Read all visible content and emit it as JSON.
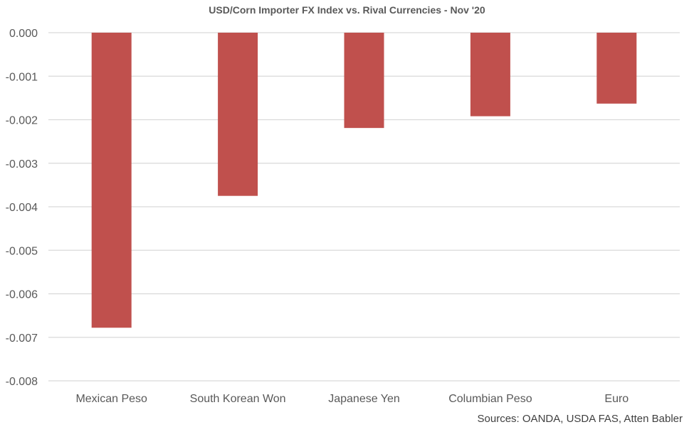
{
  "chart_data": {
    "type": "bar",
    "title": "USD/Corn Importer FX Index vs. Rival Currencies - Nov '20",
    "source": "Sources: OANDA, USDA FAS, Atten Babler",
    "categories": [
      "Mexican Peso",
      "South Korean Won",
      "Japanese Yen",
      "Columbian Peso",
      "Euro"
    ],
    "values": [
      -0.00678,
      -0.00375,
      -0.00219,
      -0.00192,
      -0.00163
    ],
    "ylim": [
      -0.008,
      0.0
    ],
    "yticks": [
      "0.000",
      "-0.001",
      "-0.002",
      "-0.003",
      "-0.004",
      "-0.005",
      "-0.006",
      "-0.007",
      "-0.008"
    ],
    "xlabel": "",
    "ylabel": "",
    "grid": true,
    "bar_color": "#c0504d",
    "grid_color": "#d9d9d9"
  }
}
